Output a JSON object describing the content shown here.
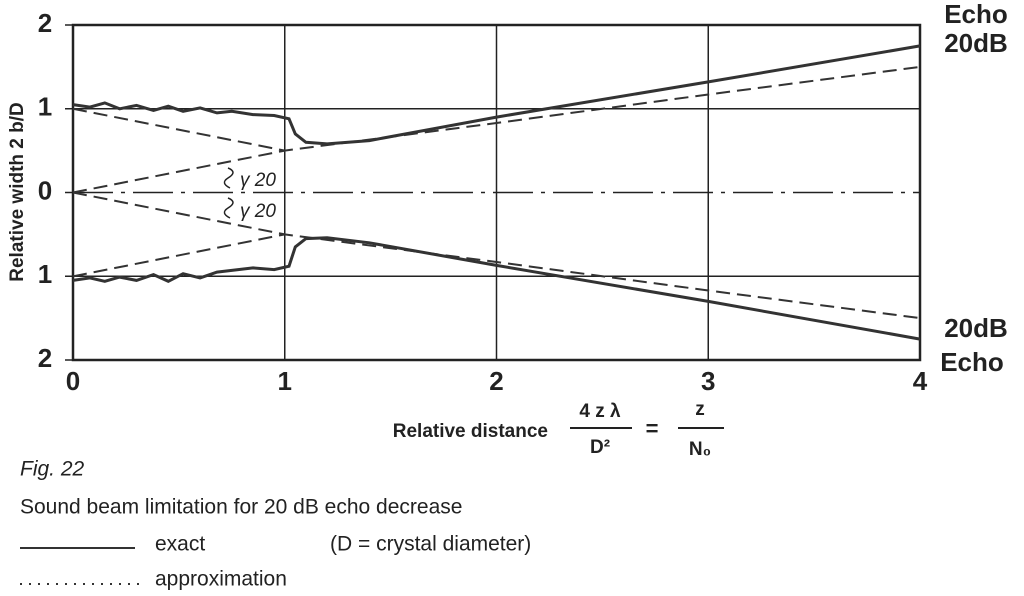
{
  "chart_data": {
    "type": "line",
    "y_label": "Relative width 2 b/D",
    "x_label": "Relative distance",
    "formula": {
      "num_left": "4 z λ",
      "den_left": "D²",
      "equals": "=",
      "num_right": "z",
      "den_right": "N₀"
    },
    "xlim": [
      0,
      4
    ],
    "xticks": [
      0,
      1,
      2,
      3,
      4
    ],
    "ylim": [
      -2,
      2
    ],
    "yticks": [
      {
        "value": -2,
        "label": "2"
      },
      {
        "value": -1,
        "label": "1"
      },
      0,
      1,
      2
    ],
    "grid": true,
    "annotations": [
      "γ 20",
      "γ 20",
      "Echo",
      "20dB",
      "20dB",
      "Echo"
    ],
    "series": [
      {
        "name": "exact",
        "color": "#333333",
        "style": "solid",
        "x": [
          0,
          0.08,
          0.15,
          0.22,
          0.3,
          0.38,
          0.45,
          0.52,
          0.6,
          0.68,
          0.75,
          0.85,
          0.95,
          1.02,
          1.05,
          1.1,
          1.2,
          1.4,
          2,
          3,
          4
        ],
        "values": [
          1.05,
          1.02,
          1.07,
          1.0,
          1.04,
          0.98,
          1.03,
          0.97,
          1.01,
          0.95,
          0.97,
          0.93,
          0.92,
          0.88,
          0.7,
          0.6,
          0.58,
          0.62,
          0.9,
          1.32,
          1.75
        ]
      },
      {
        "color": "#333333",
        "style": "solid",
        "x": [
          0,
          0.08,
          0.15,
          0.22,
          0.3,
          0.38,
          0.45,
          0.52,
          0.6,
          0.68,
          0.75,
          0.85,
          0.95,
          1.02,
          1.05,
          1.1,
          1.2,
          1.4,
          2,
          3,
          4
        ],
        "values": [
          -1.05,
          -1.02,
          -1.06,
          -1.01,
          -1.05,
          -0.98,
          -1.06,
          -0.97,
          -1.02,
          -0.95,
          -0.93,
          -0.9,
          -0.92,
          -0.88,
          -0.65,
          -0.55,
          -0.54,
          -0.6,
          -0.87,
          -1.3,
          -1.75
        ]
      },
      {
        "name": "approximation",
        "color": "#333333",
        "style": "dashed",
        "x": [
          0,
          1,
          2,
          3,
          4
        ],
        "values": [
          1,
          0.5,
          0.83,
          1.17,
          1.5
        ]
      },
      {
        "color": "#333333",
        "style": "dashed",
        "x": [
          0,
          1,
          2,
          3,
          4
        ],
        "values": [
          -1,
          -0.5,
          -0.83,
          -1.17,
          -1.5
        ]
      },
      {
        "color": "#333333",
        "style": "dashed",
        "x": [
          0,
          1
        ],
        "values": [
          0,
          0.5
        ]
      },
      {
        "color": "#333333",
        "style": "dashed",
        "x": [
          0,
          1
        ],
        "values": [
          0,
          -0.5
        ]
      }
    ]
  },
  "caption": {
    "figure": "Fig. 22",
    "text": "Sound beam limitation for 20 dB echo decrease",
    "note": "(D = crystal diameter)"
  }
}
